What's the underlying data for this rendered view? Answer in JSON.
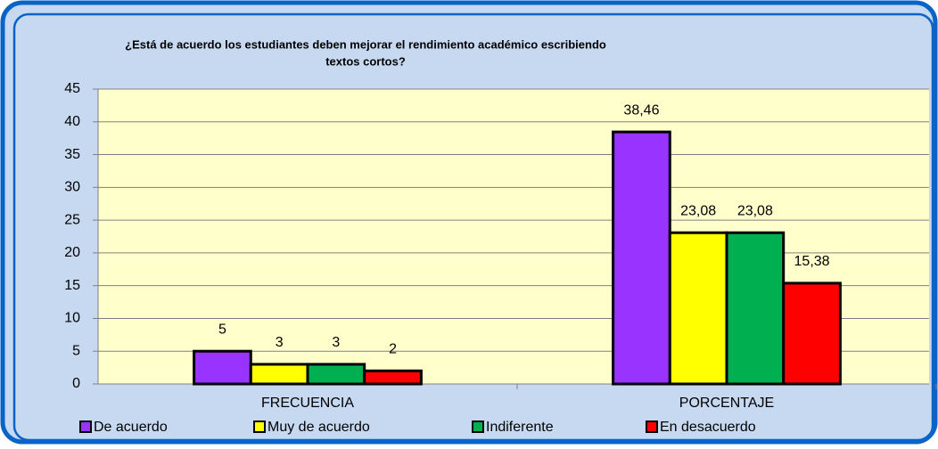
{
  "chart_data": {
    "type": "bar",
    "title": [
      "¿Está de acuerdo los estudiantes deben mejorar el rendimiento académico escribiendo",
      "textos cortos?"
    ],
    "categories": [
      "FRECUENCIA",
      "PORCENTAJE"
    ],
    "series": [
      {
        "name": "De acuerdo",
        "color": "#9933ff",
        "values": [
          5,
          38.46
        ],
        "value_labels": [
          "5",
          "38,46"
        ]
      },
      {
        "name": "Muy de acuerdo",
        "color": "#ffff00",
        "values": [
          3,
          23.08
        ],
        "value_labels": [
          "3",
          "23,08"
        ]
      },
      {
        "name": "Indiferente",
        "color": "#00b050",
        "values": [
          3,
          23.08
        ],
        "value_labels": [
          "3",
          "23,08"
        ]
      },
      {
        "name": "En desacuerdo",
        "color": "#ff0000",
        "values": [
          2,
          15.38
        ],
        "value_labels": [
          "2",
          "15,38"
        ]
      }
    ],
    "ylim": [
      0,
      45
    ],
    "yticks": [
      0,
      5,
      10,
      15,
      20,
      25,
      30,
      35,
      40,
      45
    ],
    "grid": true,
    "legend": "bottom"
  }
}
